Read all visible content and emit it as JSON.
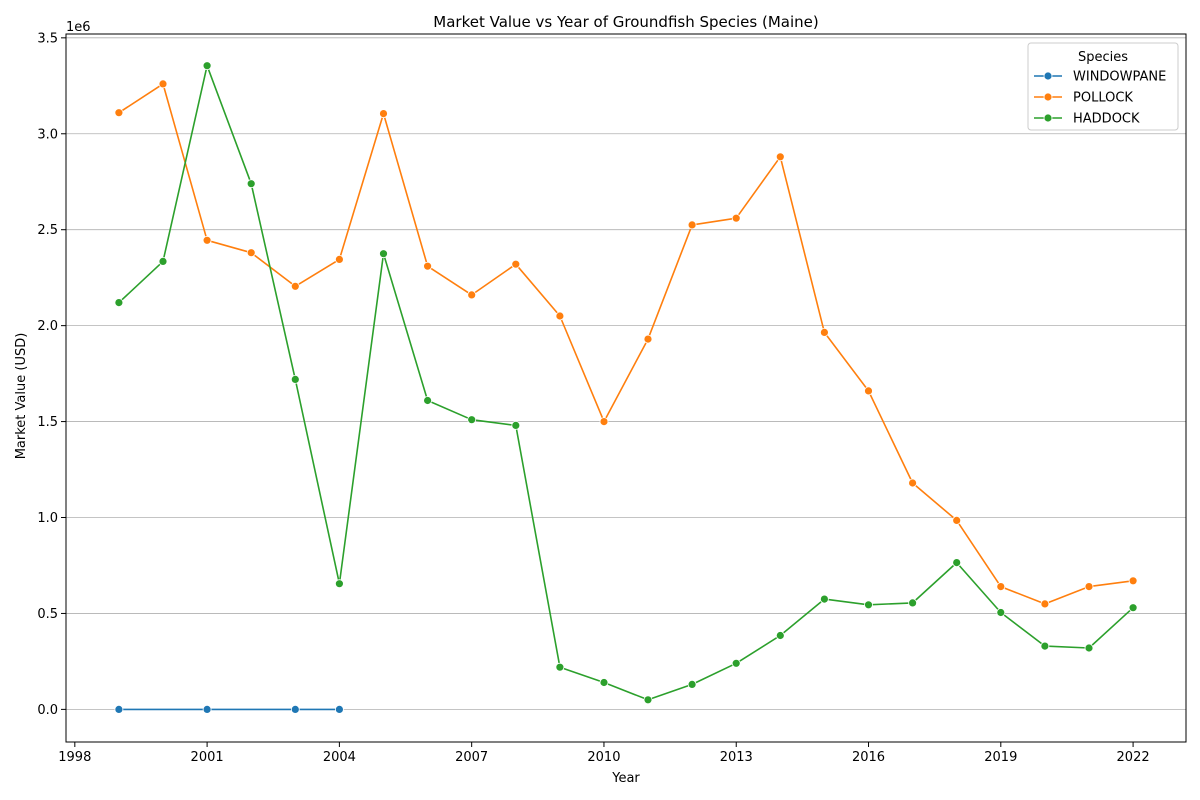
{
  "chart_data": {
    "type": "line",
    "title": "Market Value vs Year of Groundfish Species (Maine)",
    "xlabel": "Year",
    "ylabel": "Market Value (USD)",
    "y_scale_label": "1e6",
    "xlim": [
      1997.8,
      2023.2
    ],
    "ylim": [
      -170000,
      3520000
    ],
    "x_ticks": [
      1998,
      2001,
      2004,
      2007,
      2010,
      2013,
      2016,
      2019,
      2022
    ],
    "y_ticks": [
      0,
      500000,
      1000000,
      1500000,
      2000000,
      2500000,
      3000000,
      3500000
    ],
    "y_tick_labels": [
      "0.0",
      "0.5",
      "1.0",
      "1.5",
      "2.0",
      "2.5",
      "3.0",
      "3.5"
    ],
    "grid": "horizontal",
    "legend": {
      "title": "Species",
      "placement": "top-right"
    },
    "series": [
      {
        "name": "WINDOWPANE",
        "color": "#1f77b4",
        "points": [
          [
            1999,
            0
          ],
          [
            2001,
            0
          ],
          [
            2003,
            0
          ],
          [
            2004,
            0
          ]
        ]
      },
      {
        "name": "POLLOCK",
        "color": "#ff7f0e",
        "points": [
          [
            1999,
            3110000
          ],
          [
            2000,
            3260000
          ],
          [
            2001,
            2445000
          ],
          [
            2002,
            2380000
          ],
          [
            2003,
            2205000
          ],
          [
            2004,
            2345000
          ],
          [
            2005,
            3105000
          ],
          [
            2006,
            2310000
          ],
          [
            2007,
            2160000
          ],
          [
            2008,
            2320000
          ],
          [
            2009,
            2050000
          ],
          [
            2010,
            1500000
          ],
          [
            2011,
            1930000
          ],
          [
            2012,
            2525000
          ],
          [
            2013,
            2560000
          ],
          [
            2014,
            2880000
          ],
          [
            2015,
            1965000
          ],
          [
            2016,
            1660000
          ],
          [
            2017,
            1180000
          ],
          [
            2018,
            985000
          ],
          [
            2019,
            640000
          ],
          [
            2020,
            550000
          ],
          [
            2021,
            640000
          ],
          [
            2022,
            670000
          ]
        ]
      },
      {
        "name": "HADDOCK",
        "color": "#2ca02c",
        "points": [
          [
            1999,
            2120000
          ],
          [
            2000,
            2335000
          ],
          [
            2001,
            3355000
          ],
          [
            2002,
            2740000
          ],
          [
            2003,
            1720000
          ],
          [
            2004,
            655000
          ],
          [
            2005,
            2375000
          ],
          [
            2006,
            1610000
          ],
          [
            2007,
            1510000
          ],
          [
            2008,
            1480000
          ],
          [
            2009,
            220000
          ],
          [
            2010,
            140000
          ],
          [
            2011,
            50000
          ],
          [
            2012,
            130000
          ],
          [
            2013,
            240000
          ],
          [
            2014,
            385000
          ],
          [
            2015,
            575000
          ],
          [
            2016,
            545000
          ],
          [
            2017,
            555000
          ],
          [
            2018,
            765000
          ],
          [
            2019,
            505000
          ],
          [
            2020,
            330000
          ],
          [
            2021,
            320000
          ],
          [
            2022,
            530000
          ]
        ]
      }
    ]
  }
}
